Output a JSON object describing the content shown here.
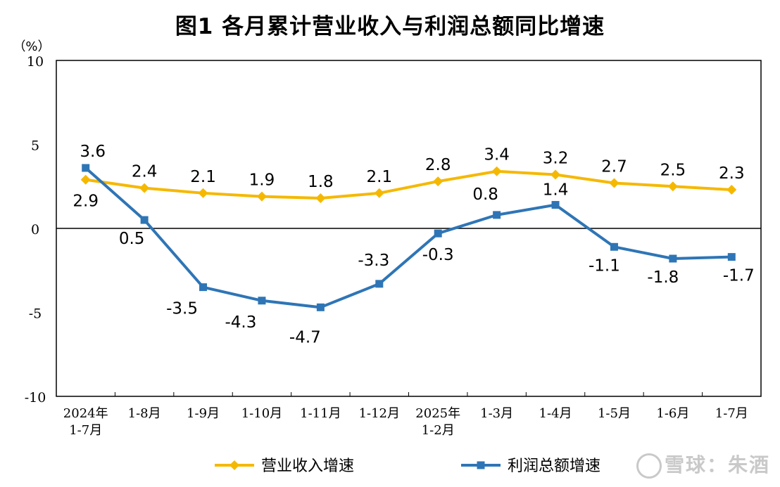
{
  "title": "图1  各月累计营业收入与利润总额同比增速",
  "watermark": "雪球：朱酒",
  "colors": {
    "revenue": "#F5B800",
    "profit": "#2E75B6",
    "axis": "#000000"
  },
  "chart_data": {
    "type": "line",
    "title": "图1  各月累计营业收入与利润总额同比增速",
    "ylabel": "（%）",
    "ylim": [
      -10,
      10
    ],
    "yticks": [
      10,
      5,
      0,
      -5,
      -10
    ],
    "categories": [
      "2024年\n1-7月",
      "1-8月",
      "1-9月",
      "1-10月",
      "1-11月",
      "1-12月",
      "2025年\n1-2月",
      "1-3月",
      "1-4月",
      "1-5月",
      "1-6月",
      "1-7月"
    ],
    "series": [
      {
        "name": "营业收入增速",
        "marker": "diamond",
        "values": [
          2.9,
          2.4,
          2.1,
          1.9,
          1.8,
          2.1,
          2.8,
          3.4,
          3.2,
          2.7,
          2.5,
          2.3
        ]
      },
      {
        "name": "利润总额增速",
        "marker": "square",
        "values": [
          3.6,
          0.5,
          -3.5,
          -4.3,
          -4.7,
          -3.3,
          -0.3,
          0.8,
          1.4,
          -1.1,
          -1.8,
          -1.7
        ]
      }
    ],
    "legend": "bottom",
    "grid": false
  }
}
